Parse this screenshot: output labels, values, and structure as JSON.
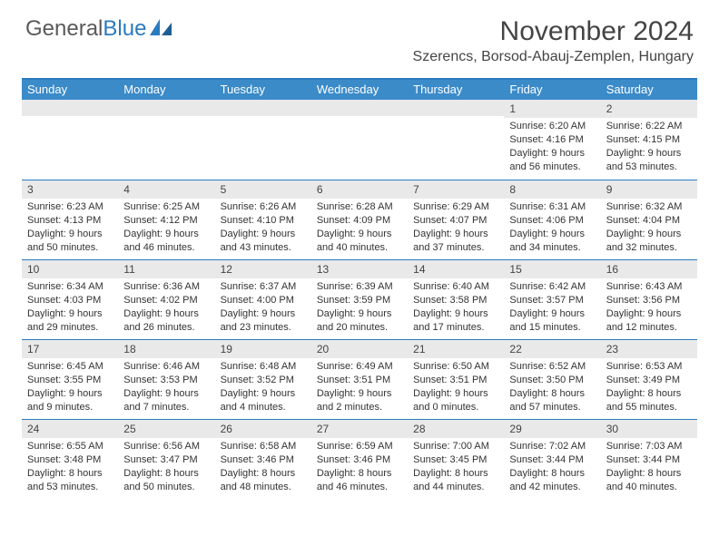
{
  "brand": {
    "name_part1": "General",
    "name_part2": "Blue"
  },
  "title": "November 2024",
  "location": "Szerencs, Borsod-Abauj-Zemplen, Hungary",
  "colors": {
    "header_bar": "#3b8bc9",
    "accent_line": "#2b7bbf",
    "daynum_bg": "#e9e9e9",
    "text": "#333333",
    "background": "#ffffff"
  },
  "weekdays": [
    "Sunday",
    "Monday",
    "Tuesday",
    "Wednesday",
    "Thursday",
    "Friday",
    "Saturday"
  ],
  "layout": {
    "columns": 7,
    "rows": 5,
    "leading_blanks": 5
  },
  "days": [
    {
      "n": 1,
      "sunrise": "6:20 AM",
      "sunset": "4:16 PM",
      "daylight": "9 hours and 56 minutes."
    },
    {
      "n": 2,
      "sunrise": "6:22 AM",
      "sunset": "4:15 PM",
      "daylight": "9 hours and 53 minutes."
    },
    {
      "n": 3,
      "sunrise": "6:23 AM",
      "sunset": "4:13 PM",
      "daylight": "9 hours and 50 minutes."
    },
    {
      "n": 4,
      "sunrise": "6:25 AM",
      "sunset": "4:12 PM",
      "daylight": "9 hours and 46 minutes."
    },
    {
      "n": 5,
      "sunrise": "6:26 AM",
      "sunset": "4:10 PM",
      "daylight": "9 hours and 43 minutes."
    },
    {
      "n": 6,
      "sunrise": "6:28 AM",
      "sunset": "4:09 PM",
      "daylight": "9 hours and 40 minutes."
    },
    {
      "n": 7,
      "sunrise": "6:29 AM",
      "sunset": "4:07 PM",
      "daylight": "9 hours and 37 minutes."
    },
    {
      "n": 8,
      "sunrise": "6:31 AM",
      "sunset": "4:06 PM",
      "daylight": "9 hours and 34 minutes."
    },
    {
      "n": 9,
      "sunrise": "6:32 AM",
      "sunset": "4:04 PM",
      "daylight": "9 hours and 32 minutes."
    },
    {
      "n": 10,
      "sunrise": "6:34 AM",
      "sunset": "4:03 PM",
      "daylight": "9 hours and 29 minutes."
    },
    {
      "n": 11,
      "sunrise": "6:36 AM",
      "sunset": "4:02 PM",
      "daylight": "9 hours and 26 minutes."
    },
    {
      "n": 12,
      "sunrise": "6:37 AM",
      "sunset": "4:00 PM",
      "daylight": "9 hours and 23 minutes."
    },
    {
      "n": 13,
      "sunrise": "6:39 AM",
      "sunset": "3:59 PM",
      "daylight": "9 hours and 20 minutes."
    },
    {
      "n": 14,
      "sunrise": "6:40 AM",
      "sunset": "3:58 PM",
      "daylight": "9 hours and 17 minutes."
    },
    {
      "n": 15,
      "sunrise": "6:42 AM",
      "sunset": "3:57 PM",
      "daylight": "9 hours and 15 minutes."
    },
    {
      "n": 16,
      "sunrise": "6:43 AM",
      "sunset": "3:56 PM",
      "daylight": "9 hours and 12 minutes."
    },
    {
      "n": 17,
      "sunrise": "6:45 AM",
      "sunset": "3:55 PM",
      "daylight": "9 hours and 9 minutes."
    },
    {
      "n": 18,
      "sunrise": "6:46 AM",
      "sunset": "3:53 PM",
      "daylight": "9 hours and 7 minutes."
    },
    {
      "n": 19,
      "sunrise": "6:48 AM",
      "sunset": "3:52 PM",
      "daylight": "9 hours and 4 minutes."
    },
    {
      "n": 20,
      "sunrise": "6:49 AM",
      "sunset": "3:51 PM",
      "daylight": "9 hours and 2 minutes."
    },
    {
      "n": 21,
      "sunrise": "6:50 AM",
      "sunset": "3:51 PM",
      "daylight": "9 hours and 0 minutes."
    },
    {
      "n": 22,
      "sunrise": "6:52 AM",
      "sunset": "3:50 PM",
      "daylight": "8 hours and 57 minutes."
    },
    {
      "n": 23,
      "sunrise": "6:53 AM",
      "sunset": "3:49 PM",
      "daylight": "8 hours and 55 minutes."
    },
    {
      "n": 24,
      "sunrise": "6:55 AM",
      "sunset": "3:48 PM",
      "daylight": "8 hours and 53 minutes."
    },
    {
      "n": 25,
      "sunrise": "6:56 AM",
      "sunset": "3:47 PM",
      "daylight": "8 hours and 50 minutes."
    },
    {
      "n": 26,
      "sunrise": "6:58 AM",
      "sunset": "3:46 PM",
      "daylight": "8 hours and 48 minutes."
    },
    {
      "n": 27,
      "sunrise": "6:59 AM",
      "sunset": "3:46 PM",
      "daylight": "8 hours and 46 minutes."
    },
    {
      "n": 28,
      "sunrise": "7:00 AM",
      "sunset": "3:45 PM",
      "daylight": "8 hours and 44 minutes."
    },
    {
      "n": 29,
      "sunrise": "7:02 AM",
      "sunset": "3:44 PM",
      "daylight": "8 hours and 42 minutes."
    },
    {
      "n": 30,
      "sunrise": "7:03 AM",
      "sunset": "3:44 PM",
      "daylight": "8 hours and 40 minutes."
    }
  ],
  "labels": {
    "sunrise": "Sunrise:",
    "sunset": "Sunset:",
    "daylight": "Daylight:"
  }
}
